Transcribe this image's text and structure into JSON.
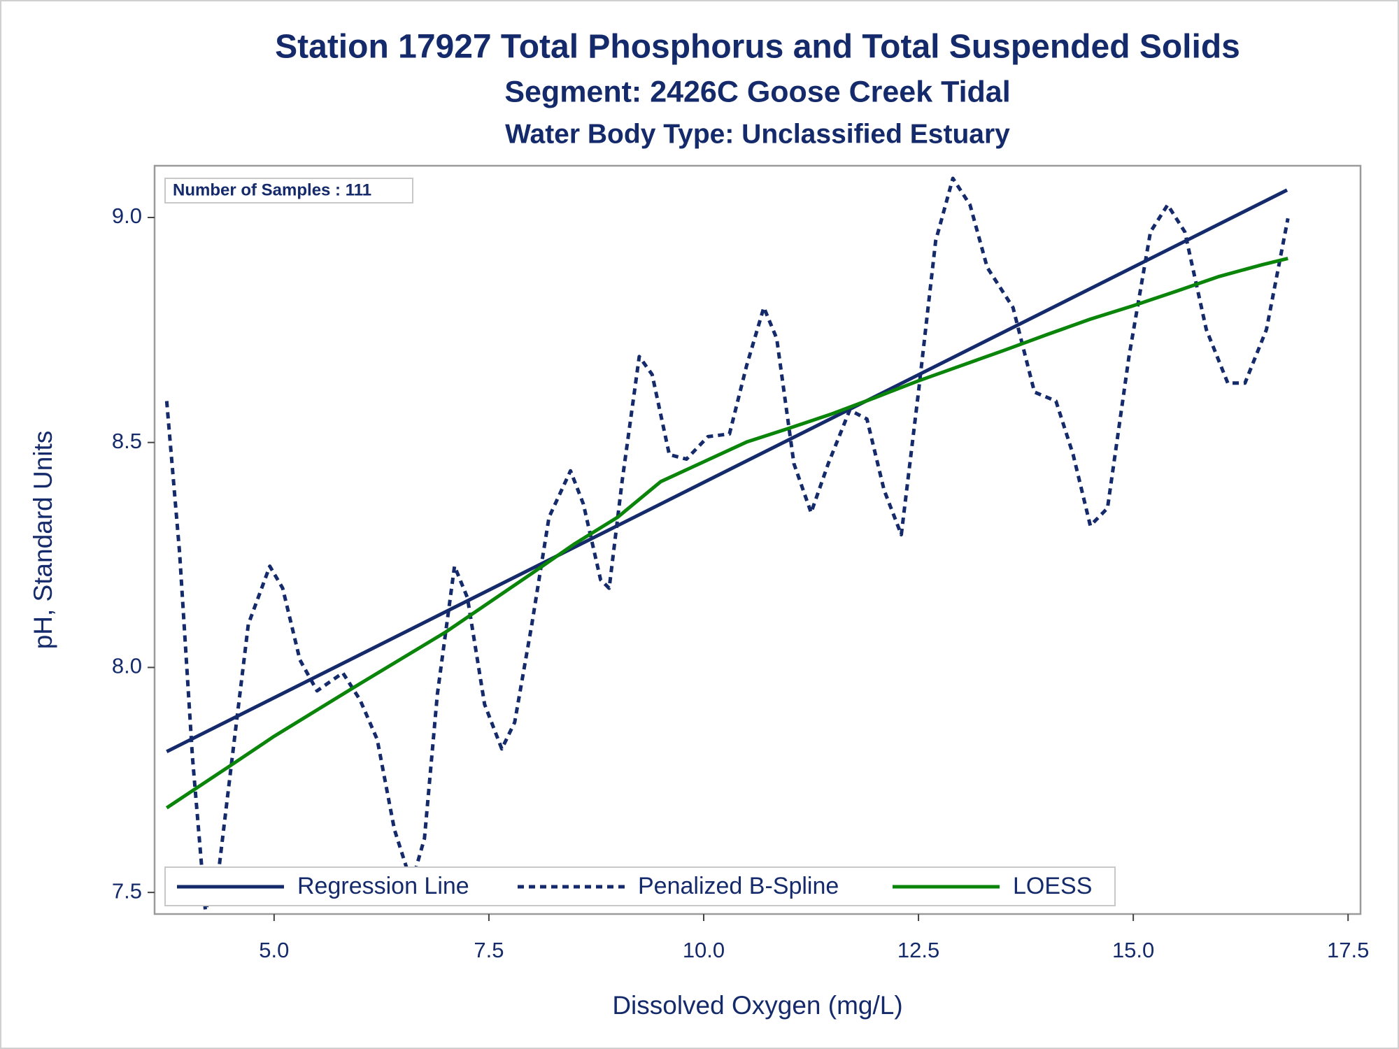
{
  "chart_data": {
    "type": "line",
    "title": "Station 17927  Total Phosphorus and Total Suspended Solids",
    "subtitle": "Segment: 2426C  Goose Creek Tidal",
    "subtitle2": "Water Body Type: Unclassified Estuary",
    "annotation": "Number of Samples : 111",
    "x_label": "Dissolved Oxygen (mg/L)",
    "y_label": "pH, Standard Units",
    "xlim": [
      3.609,
      17.645
    ],
    "ylim": [
      7.452,
      9.115
    ],
    "xticks": [
      {
        "value": 5,
        "label": "5.0"
      },
      7.5,
      {
        "value": 10,
        "label": "10.0"
      },
      12.5,
      {
        "value": 15,
        "label": "15.0"
      },
      17.5
    ],
    "yticks": [
      7.5,
      {
        "value": 8,
        "label": "8.0"
      },
      8.5,
      {
        "value": 9,
        "label": "9.0"
      }
    ],
    "legend_position": "bottom-left",
    "series": [
      {
        "name": "Regression Line",
        "color": "#142a6b",
        "dash": "solid",
        "x": [
          3.75,
          16.79
        ],
        "values": [
          7.813,
          9.061
        ]
      },
      {
        "name": "Penalized B-Spline",
        "color": "#142a6b",
        "dash": "dashed",
        "x": [
          3.75,
          3.9,
          4.05,
          4.2,
          4.35,
          4.5,
          4.7,
          4.95,
          5.1,
          5.3,
          5.5,
          5.8,
          6.0,
          6.2,
          6.4,
          6.6,
          6.75,
          6.9,
          7.1,
          7.25,
          7.45,
          7.65,
          7.8,
          8.0,
          8.2,
          8.45,
          8.6,
          8.8,
          8.9,
          9.05,
          9.25,
          9.4,
          9.6,
          9.8,
          10.05,
          10.3,
          10.5,
          10.7,
          10.85,
          11.05,
          11.25,
          11.45,
          11.7,
          11.9,
          12.1,
          12.3,
          12.5,
          12.7,
          12.9,
          13.1,
          13.3,
          13.6,
          13.85,
          14.1,
          14.3,
          14.5,
          14.7,
          14.95,
          15.2,
          15.4,
          15.6,
          15.85,
          16.1,
          16.3,
          16.55,
          16.8
        ],
        "values": [
          8.592,
          8.255,
          7.8,
          7.46,
          7.54,
          7.78,
          8.096,
          8.225,
          8.176,
          8.017,
          7.948,
          7.988,
          7.928,
          7.84,
          7.64,
          7.52,
          7.62,
          7.94,
          8.225,
          8.155,
          7.918,
          7.819,
          7.878,
          8.096,
          8.334,
          8.437,
          8.363,
          8.195,
          8.176,
          8.413,
          8.691,
          8.651,
          8.473,
          8.463,
          8.513,
          8.519,
          8.671,
          8.8,
          8.731,
          8.453,
          8.344,
          8.453,
          8.572,
          8.552,
          8.394,
          8.295,
          8.612,
          8.948,
          9.087,
          9.028,
          8.889,
          8.8,
          8.612,
          8.592,
          8.473,
          8.315,
          8.354,
          8.691,
          8.968,
          9.028,
          8.968,
          8.751,
          8.632,
          8.632,
          8.751,
          8.998
        ]
      },
      {
        "name": "LOESS",
        "color": "#0a850a",
        "dash": "solid",
        "x": [
          3.75,
          4.5,
          5.0,
          6.0,
          7.0,
          8.0,
          8.5,
          9.0,
          9.5,
          10.0,
          10.5,
          11.0,
          11.5,
          12.0,
          12.5,
          13.0,
          13.5,
          14.0,
          14.5,
          15.0,
          15.5,
          16.0,
          16.5,
          16.8
        ],
        "values": [
          7.688,
          7.783,
          7.847,
          7.964,
          8.079,
          8.209,
          8.275,
          8.334,
          8.413,
          8.457,
          8.501,
          8.532,
          8.564,
          8.6,
          8.637,
          8.671,
          8.705,
          8.74,
          8.774,
          8.804,
          8.836,
          8.869,
          8.895,
          8.909
        ]
      }
    ]
  }
}
